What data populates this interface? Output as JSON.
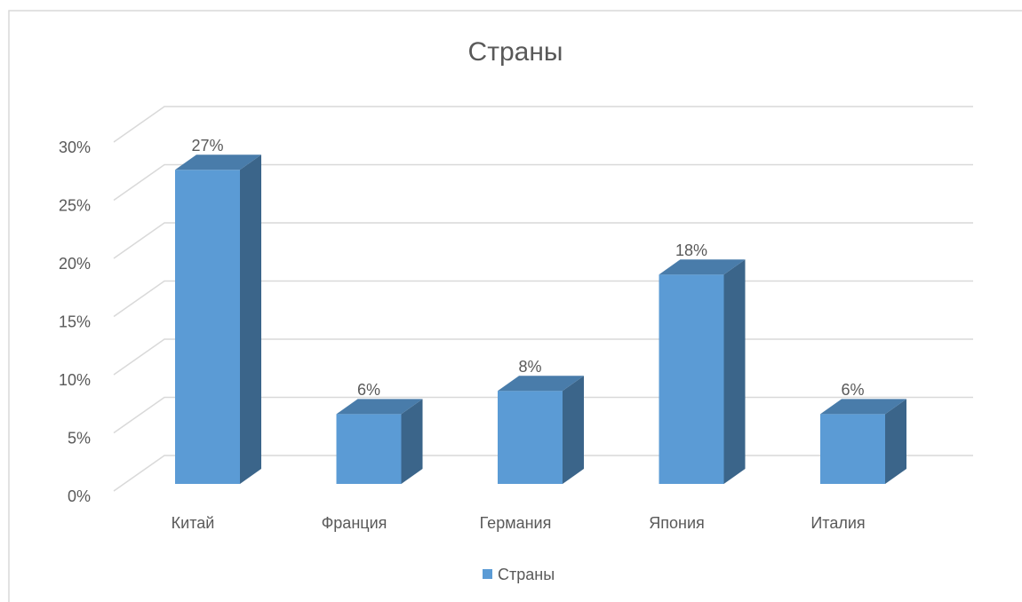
{
  "chart_data": {
    "type": "bar3d",
    "title": "Страны",
    "categories": [
      "Китай",
      "Франция",
      "Германия",
      "Япония",
      "Италия"
    ],
    "series": [
      {
        "name": "Страны",
        "color": "#5b9bd5",
        "values": [
          27,
          6,
          8,
          18,
          6
        ],
        "value_labels": [
          "27%",
          "6%",
          "8%",
          "18%",
          "6%"
        ]
      }
    ],
    "ylim": [
      0,
      30
    ],
    "yticks": [
      {
        "value": 0,
        "label": "0%"
      },
      {
        "value": 5,
        "label": "5%"
      },
      {
        "value": 10,
        "label": "10%"
      },
      {
        "value": 15,
        "label": "15%"
      },
      {
        "value": 20,
        "label": "20%"
      },
      {
        "value": 25,
        "label": "25%"
      },
      {
        "value": 30,
        "label": "30%"
      }
    ],
    "grid": true,
    "legend": "bottom"
  }
}
